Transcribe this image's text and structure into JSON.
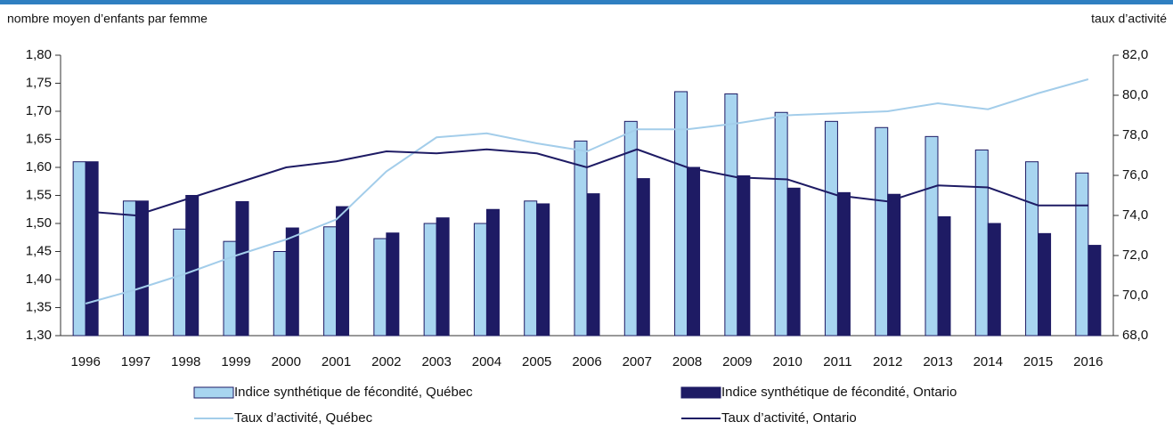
{
  "chart_data": {
    "type": "combo",
    "ylabel": "nombre moyen d’enfants par femme",
    "y2label": "taux d’activité",
    "categories": [
      "1996",
      "1997",
      "1998",
      "1999",
      "2000",
      "2001",
      "2002",
      "2003",
      "2004",
      "2005",
      "2006",
      "2007",
      "2008",
      "2009",
      "2010",
      "2011",
      "2012",
      "2013",
      "2014",
      "2015",
      "2016"
    ],
    "series": [
      {
        "name": "Indice synthétique de fécondité, Québec",
        "type": "bar",
        "color": "#a8d5f0",
        "values": [
          1.61,
          1.54,
          1.49,
          1.468,
          1.45,
          1.494,
          1.473,
          1.5,
          1.5,
          1.54,
          1.647,
          1.682,
          1.735,
          1.731,
          1.698,
          1.682,
          1.671,
          1.655,
          1.631,
          1.61,
          1.59
        ]
      },
      {
        "name": "Indice synthétique de fécondité, Ontario",
        "type": "bar",
        "color": "#1e1b64",
        "values": [
          1.61,
          1.54,
          1.55,
          1.539,
          1.492,
          1.53,
          1.483,
          1.51,
          1.525,
          1.535,
          1.553,
          1.58,
          1.6,
          1.585,
          1.563,
          1.555,
          1.552,
          1.512,
          1.5,
          1.482,
          1.461
        ]
      },
      {
        "name": "Taux d’activité, Québec",
        "type": "line",
        "axis": "y2",
        "color": "#a3cdea",
        "values": [
          69.6,
          70.3,
          71.1,
          72.0,
          72.8,
          73.8,
          76.2,
          77.9,
          78.1,
          77.6,
          77.2,
          78.3,
          78.3,
          78.6,
          79.0,
          79.1,
          79.2,
          79.6,
          79.3,
          80.1,
          80.8
        ]
      },
      {
        "name": "Taux d’activité, Ontario",
        "type": "line",
        "axis": "y2",
        "color": "#1e1b64",
        "values": [
          74.2,
          74.0,
          74.8,
          75.6,
          76.4,
          76.7,
          77.2,
          77.1,
          77.3,
          77.1,
          76.4,
          77.3,
          76.4,
          75.9,
          75.8,
          75.0,
          74.7,
          75.5,
          75.4,
          74.5,
          74.5
        ]
      }
    ],
    "ylim": [
      1.3,
      1.8
    ],
    "yticks": [
      {
        "value": 1.3,
        "label": "1,30"
      },
      {
        "value": 1.35,
        "label": "1,35"
      },
      {
        "value": 1.4,
        "label": "1,40"
      },
      {
        "value": 1.45,
        "label": "1,45"
      },
      {
        "value": 1.5,
        "label": "1,50"
      },
      {
        "value": 1.55,
        "label": "1,55"
      },
      {
        "value": 1.6,
        "label": "1,60"
      },
      {
        "value": 1.65,
        "label": "1,65"
      },
      {
        "value": 1.7,
        "label": "1,70"
      },
      {
        "value": 1.75,
        "label": "1,75"
      },
      {
        "value": 1.8,
        "label": "1,80"
      }
    ],
    "y2lim": [
      68,
      82
    ],
    "y2ticks": [
      {
        "value": 68,
        "label": "68,0"
      },
      {
        "value": 70,
        "label": "70,0"
      },
      {
        "value": 72,
        "label": "72,0"
      },
      {
        "value": 74,
        "label": "74,0"
      },
      {
        "value": 76,
        "label": "76,0"
      },
      {
        "value": 78,
        "label": "78,0"
      },
      {
        "value": 80,
        "label": "80,0"
      },
      {
        "value": 82,
        "label": "82,0"
      }
    ],
    "grid": false
  }
}
